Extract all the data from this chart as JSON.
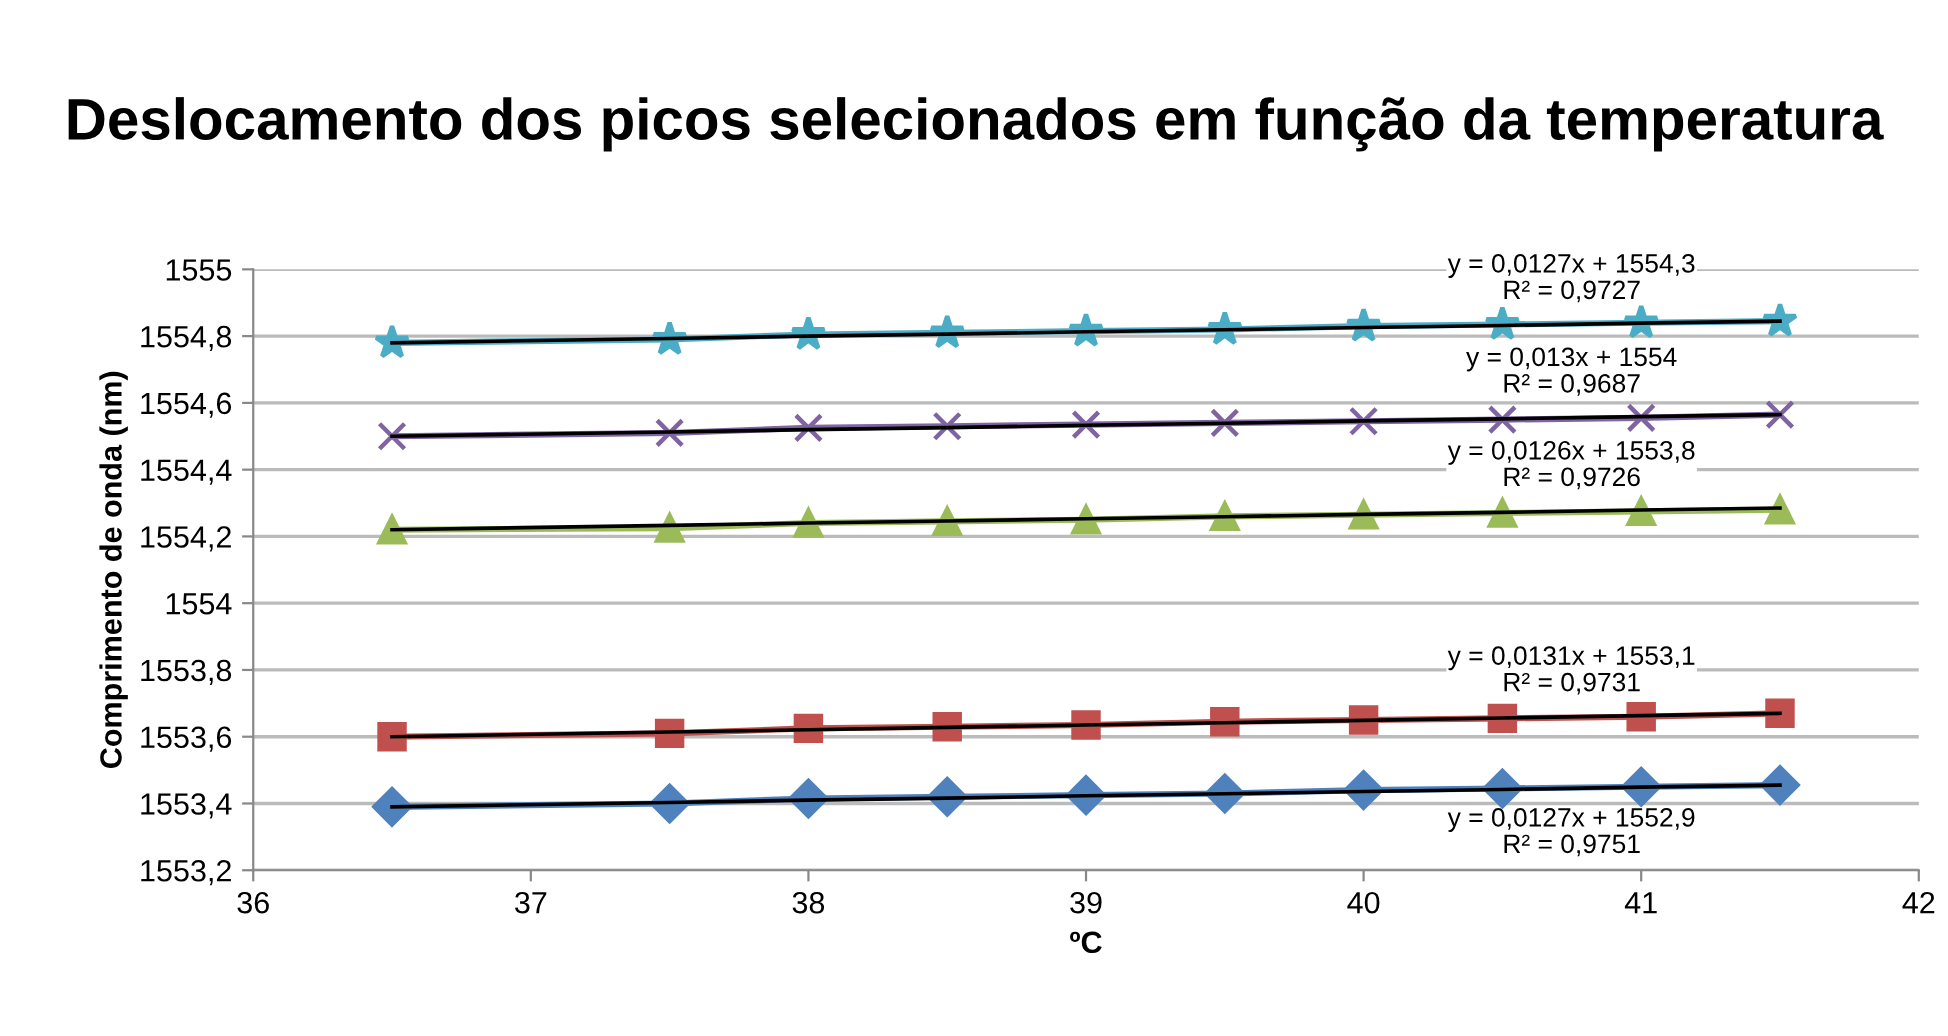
{
  "chart_data": {
    "type": "line",
    "title": "Deslocamento dos picos selecionados em função da temperatura",
    "xlabel": "ºC",
    "ylabel": "Comprimento de onda (nm)",
    "x": [
      36.5,
      37.5,
      38,
      38.5,
      39,
      39.5,
      40,
      40.5,
      41,
      41.5
    ],
    "series": [
      {
        "color": "#4f81bd",
        "marker": "diamond",
        "values": [
          1553.39,
          1553.4,
          1553.415,
          1553.42,
          1553.425,
          1553.43,
          1553.44,
          1553.445,
          1553.45,
          1553.455
        ]
      },
      {
        "color": "#c0504d",
        "marker": "square",
        "values": [
          1553.6,
          1553.61,
          1553.625,
          1553.63,
          1553.635,
          1553.645,
          1553.65,
          1553.655,
          1553.66,
          1553.67
        ]
      },
      {
        "color": "#9bbb59",
        "marker": "triangle",
        "values": [
          1554.22,
          1554.225,
          1554.24,
          1554.245,
          1554.25,
          1554.26,
          1554.265,
          1554.27,
          1554.275,
          1554.28
        ]
      },
      {
        "color": "#8064a2",
        "marker": "cross",
        "values": [
          1554.5,
          1554.51,
          1554.525,
          1554.53,
          1554.535,
          1554.54,
          1554.545,
          1554.55,
          1554.555,
          1554.565
        ]
      },
      {
        "color": "#4bacc6",
        "marker": "star",
        "values": [
          1554.78,
          1554.79,
          1554.805,
          1554.81,
          1554.815,
          1554.82,
          1554.83,
          1554.835,
          1554.84,
          1554.845
        ]
      },
      {
        "type": "line",
        "color": "#000000",
        "marker": "none",
        "values": [
          1553.39,
          1553.403,
          1553.41,
          1553.416,
          1553.423,
          1553.429,
          1553.436,
          1553.442,
          1553.449,
          1553.455
        ]
      },
      {
        "type": "line",
        "color": "#000000",
        "marker": "none",
        "values": [
          1553.6,
          1553.614,
          1553.621,
          1553.628,
          1553.635,
          1553.642,
          1553.649,
          1553.656,
          1553.663,
          1553.67
        ]
      },
      {
        "type": "line",
        "color": "#000000",
        "marker": "none",
        "values": [
          1554.22,
          1554.233,
          1554.24,
          1554.246,
          1554.253,
          1554.259,
          1554.266,
          1554.272,
          1554.279,
          1554.285
        ]
      },
      {
        "type": "line",
        "color": "#000000",
        "marker": "none",
        "values": [
          1554.5,
          1554.513,
          1554.52,
          1554.526,
          1554.533,
          1554.539,
          1554.546,
          1554.552,
          1554.559,
          1554.565
        ]
      },
      {
        "type": "line",
        "color": "#000000",
        "marker": "none",
        "values": [
          1554.78,
          1554.793,
          1554.8,
          1554.806,
          1554.813,
          1554.819,
          1554.826,
          1554.832,
          1554.839,
          1554.845
        ]
      }
    ],
    "annotations": [
      "y = 0,0127x + 1552,9\nR² = 0,9751",
      "y = 0,0131x + 1553,1\nR² = 0,9731",
      "y = 0,0126x + 1553,8\nR² = 0,9726",
      "y = 0,013x + 1554\nR² = 0,9687",
      "y = 0,0127x + 1554,3\nR² = 0,9727"
    ],
    "xlim": [
      36,
      42
    ],
    "xticks": [
      36,
      37,
      38,
      39,
      40,
      41,
      42
    ],
    "ylim": [
      1553.2,
      1555
    ],
    "yticks": [
      {
        "value": 1553.2,
        "label": "1553,2"
      },
      {
        "value": 1553.4,
        "label": "1553,4"
      },
      {
        "value": 1553.6,
        "label": "1553,6"
      },
      {
        "value": 1553.8,
        "label": "1553,8"
      },
      {
        "value": 1554,
        "label": "1554"
      },
      {
        "value": 1554.2,
        "label": "1554,2"
      },
      {
        "value": 1554.4,
        "label": "1554,4"
      },
      {
        "value": 1554.6,
        "label": "1554,6"
      },
      {
        "value": 1554.8,
        "label": "1554,8"
      },
      {
        "value": 1555,
        "label": "1555"
      }
    ],
    "grid": "y",
    "legend": false
  }
}
